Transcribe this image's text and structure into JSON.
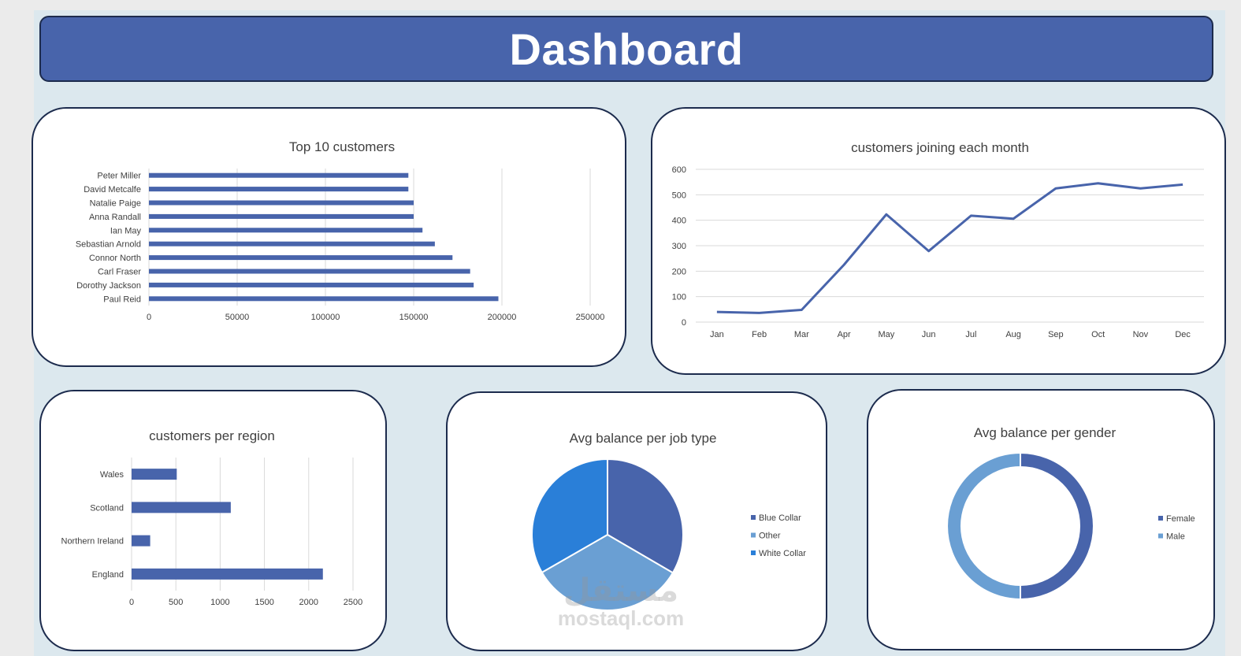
{
  "header": {
    "title": "Dashboard"
  },
  "watermark": {
    "arabic": "مستقل",
    "latin": "mostaql.com"
  },
  "colors": {
    "header_bg": "#4864ab",
    "series_main": "#4864ab",
    "pie_other": "#6a9fd3",
    "pie_white_collar": "#2a7fd8",
    "donut_male": "#6a9fd3",
    "gridline": "#d9d9d9"
  },
  "chart_data": [
    {
      "id": "top10",
      "type": "bar",
      "orientation": "horizontal",
      "title": "Top 10 customers",
      "categories": [
        "Peter Miller",
        "David Metcalfe",
        "Natalie Paige",
        "Anna Randall",
        "Ian May",
        "Sebastian Arnold",
        "Connor North",
        "Carl Fraser",
        "Dorothy Jackson",
        "Paul Reid"
      ],
      "values": [
        147000,
        147000,
        150000,
        150000,
        155000,
        162000,
        172000,
        182000,
        184000,
        198000
      ],
      "xlim": [
        0,
        250000
      ],
      "xticks": [
        "0",
        "50000",
        "100000",
        "150000",
        "200000",
        "250000"
      ],
      "grid": true
    },
    {
      "id": "monthly",
      "type": "line",
      "title": "customers joining each month",
      "categories": [
        "Jan",
        "Feb",
        "Mar",
        "Apr",
        "May",
        "Jun",
        "Jul",
        "Aug",
        "Sep",
        "Oct",
        "Nov",
        "Dec"
      ],
      "values": [
        40,
        36,
        48,
        225,
        423,
        279,
        418,
        406,
        525,
        545,
        525,
        540
      ],
      "ylim": [
        0,
        600
      ],
      "yticks": [
        "0",
        "100",
        "200",
        "300",
        "400",
        "500",
        "600"
      ],
      "grid": true
    },
    {
      "id": "region",
      "type": "bar",
      "orientation": "horizontal",
      "title": "customers per region",
      "categories": [
        "Wales",
        "Scotland",
        "Northern Ireland",
        "England"
      ],
      "values": [
        510,
        1120,
        210,
        2160
      ],
      "xlim": [
        0,
        2500
      ],
      "xticks": [
        "0",
        "500",
        "1000",
        "1500",
        "2000",
        "2500"
      ],
      "grid": true
    },
    {
      "id": "jobtype",
      "type": "pie",
      "title": "Avg balance per job type",
      "labels": [
        "Blue Collar",
        "Other",
        "White Collar"
      ],
      "values": [
        33.4,
        33.3,
        33.3
      ],
      "colors": [
        "#4864ab",
        "#6a9fd3",
        "#2a7fd8"
      ],
      "legend": "right"
    },
    {
      "id": "gender",
      "type": "pie",
      "subtype": "doughnut",
      "title": "Avg balance per gender",
      "labels": [
        "Female",
        "Male"
      ],
      "values": [
        50,
        50
      ],
      "colors": [
        "#4864ab",
        "#6a9fd3"
      ],
      "legend": "right"
    }
  ]
}
